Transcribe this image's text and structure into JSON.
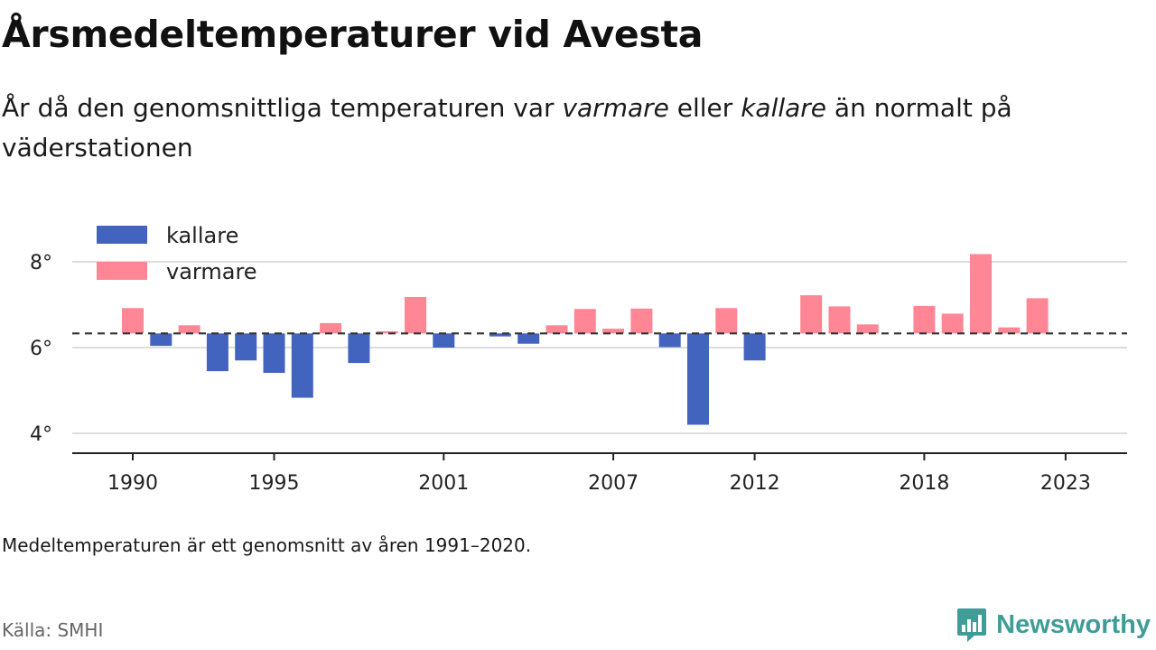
{
  "title": "Årsmedeltemperaturer vid Avesta",
  "subtitle": {
    "part1": "År då den genomsnittliga temperaturen var ",
    "warmer": "varmare",
    "part2": " eller ",
    "colder": "kallare",
    "part3": " än normalt på väderstationen"
  },
  "footnote": "Medeltemperaturen är ett genomsnitt av åren 1991–2020.",
  "source": "Källa: SMHI",
  "brand": "Newsworthy",
  "chart_data": {
    "type": "bar",
    "baseline": 6.33,
    "ylim": [
      3.6,
      9.0
    ],
    "yticks": [
      {
        "value": 4,
        "label": "4°"
      },
      {
        "value": 6,
        "label": "6°"
      },
      {
        "value": 8,
        "label": "8°"
      }
    ],
    "xlim": [
      1987.9,
      2025.2
    ],
    "xticks": [
      1990,
      1995,
      2001,
      2007,
      2012,
      2018,
      2023
    ],
    "legend": {
      "placement": "top-left",
      "items": [
        {
          "key": "kallare",
          "label": "kallare",
          "color": "#4264be"
        },
        {
          "key": "varmare",
          "label": "varmare",
          "color": "#ff8694"
        }
      ]
    },
    "colors": {
      "kallare": "#4264be",
      "varmare": "#ff8694",
      "baseline": "#333333",
      "grid": "#dddddd",
      "axis": "#222222"
    },
    "years": [
      1990,
      1991,
      1992,
      1993,
      1994,
      1995,
      1996,
      1997,
      1998,
      1999,
      2000,
      2001,
      2002,
      2003,
      2004,
      2005,
      2006,
      2007,
      2008,
      2009,
      2010,
      2011,
      2012,
      2013,
      2014,
      2015,
      2016,
      2017,
      2018,
      2019,
      2020,
      2021,
      2022
    ],
    "values": [
      6.92,
      6.04,
      6.52,
      5.45,
      5.7,
      5.41,
      4.83,
      6.57,
      5.64,
      6.38,
      7.18,
      6.0,
      6.33,
      6.26,
      6.09,
      6.52,
      6.9,
      6.44,
      6.91,
      6.01,
      4.2,
      6.92,
      5.7,
      6.33,
      7.22,
      6.96,
      6.54,
      6.33,
      6.97,
      6.79,
      8.18,
      6.47,
      7.15
    ]
  }
}
